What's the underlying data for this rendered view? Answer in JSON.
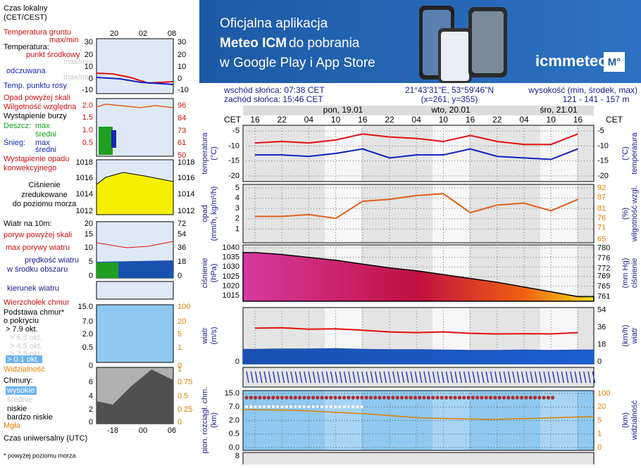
{
  "banner": {
    "line1": "Oficjalna aplikacja",
    "line2a": "Meteo ICM",
    "line2b": "do pobrania",
    "line3": "w Google Play i App Store",
    "logo": "icmmeteo",
    "badge": "M°"
  },
  "info": {
    "sunrise": "wschód słońca: 07:38 CET",
    "sunset": "zachód słońca: 15:46 CET",
    "coords": "21°43'31\"E, 53°59'46\"N",
    "grid": "(x=261,  y=355)",
    "elevation_label": "wysokość (min, środek, max)",
    "elevation": "121 - 141 - 157 m"
  },
  "time_axis": {
    "left": "CET",
    "right": "CET",
    "hours": [
      "16",
      "22",
      "04",
      "10",
      "16",
      "22",
      "04",
      "10",
      "16",
      "22",
      "04",
      "10",
      "16"
    ],
    "days": [
      "pon, 19.01",
      "wto, 20.01",
      "śro, 21.01"
    ]
  },
  "chart_data": [
    {
      "type": "line",
      "y_title": "temperatura",
      "y_unit": "(°C)",
      "y2_unit": "(°C)",
      "y2_title": "temperatura",
      "ylim": [
        -21.9,
        -3.1
      ],
      "yticks": [
        -20,
        -15,
        -10,
        -5
      ],
      "y2lim": [
        -21.9,
        -3.1
      ],
      "y2ticks": [
        -20,
        -15,
        -10,
        -5
      ],
      "series": [
        {
          "color": "#e01010",
          "values": [
            -9,
            -8.5,
            -9,
            -8,
            -6,
            -7,
            -7.5,
            -8.5,
            -6.5,
            -8.5,
            -9.5,
            -9.5,
            -6
          ]
        },
        {
          "color": "#1020c0",
          "values": [
            -13,
            -13,
            -13.5,
            -12.5,
            -11,
            -14,
            -13,
            -13,
            -11,
            -13.5,
            -14,
            -14.5,
            -11
          ]
        }
      ]
    },
    {
      "type": "line",
      "y_title": "opad",
      "y_unit": "(mm/h, kg/m²/h)",
      "y2_unit": "(%)",
      "y2_title": "wilgotność wzgl.",
      "ylim": [
        -0.34,
        5.34
      ],
      "yticks": [
        1,
        2,
        3,
        4,
        5
      ],
      "y2lim": [
        63.1,
        93.9
      ],
      "y2ticks": [
        65,
        71,
        76,
        81,
        87,
        92
      ],
      "series": [
        {
          "color": "#e0601a",
          "axis": "y2",
          "values": [
            77,
            77,
            78,
            76,
            85,
            86,
            88,
            89,
            79,
            83,
            84,
            80,
            86
          ]
        }
      ]
    },
    {
      "type": "area",
      "y_title": "ciśnienie",
      "y_unit": "(hPa)",
      "y2_unit": "(mm Hg)",
      "y2_title": "ciśnienie",
      "ylim": [
        1012.1,
        1041.5
      ],
      "yticks": [
        1015,
        1020,
        1025,
        1030,
        1035,
        1040
      ],
      "y2lim": [
        759.2,
        781.2
      ],
      "y2ticks": [
        761,
        765,
        769,
        772,
        776,
        780
      ],
      "series": [
        {
          "color": "#000000",
          "values": [
            1037.5,
            1036.5,
            1035,
            1033.5,
            1031.5,
            1029.5,
            1028,
            1026,
            1024,
            1022,
            1019.5,
            1017,
            1014.5
          ]
        }
      ]
    },
    {
      "type": "area",
      "y_title": "wiatr",
      "y_unit": "(m/s)",
      "y2_unit": "(km/h)",
      "y2_title": "wiatr",
      "ylim": [
        -0.6,
        15.8
      ],
      "yticks": [
        0
      ],
      "y2lim": [
        -2.1,
        56.8
      ],
      "y2ticks": [
        0,
        18,
        36,
        54
      ],
      "series": [
        {
          "color": "#1a50b0",
          "values": [
            3.6,
            3.7,
            3.7,
            3.8,
            3.6,
            3.5,
            3.5,
            3.4,
            3.3,
            3.3,
            3.4,
            3.3,
            3.4
          ]
        },
        {
          "color": "#e01010",
          "values": [
            9.8,
            9.9,
            9.5,
            9.6,
            9.2,
            8.7,
            8.5,
            8.7,
            8.3,
            8.1,
            8.2,
            8.1,
            8.5
          ]
        }
      ]
    }
  ],
  "cloud_panel": {
    "y_title": "pion. rozciągł. chm.",
    "y_unit": "(km)",
    "y2_unit": "(km)",
    "y2_title": "widzialność",
    "yticks": [
      "15.0",
      "7.0",
      "2.0",
      "0.5",
      "0.0"
    ],
    "y2ticks": [
      "100",
      "20",
      "5",
      "1",
      "0"
    ]
  },
  "bottom_panel": {
    "yticks": [
      "8"
    ]
  },
  "legend": {
    "local_time": [
      "Czas lokalny",
      "(CET/CEST)"
    ],
    "local_hours": [
      "20",
      "02",
      "08"
    ],
    "temperature": {
      "ground": "Temperatura gruntu",
      "ground_mm": "max/min",
      "title": "Temperatura:",
      "mid": "punkt środkowy",
      "mid_mm": "max/min",
      "felt": "odczuwana",
      "felt_mm": "max/min",
      "dew": "Temp. punktu rosy",
      "ticks": [
        "30",
        "20",
        "10",
        "0",
        "-10"
      ]
    },
    "precip": {
      "above": "Opad powyżej skali",
      "humidity": "Wilgotność względna",
      "storm": "Wystąpienie burzy",
      "rain": "Deszcz:",
      "rain_max": "max",
      "rain_mean": "średni",
      "snow": "Śnieg:",
      "snow_max": "max",
      "snow_mean": "średni",
      "conv1": "Wystąpienie opadu",
      "conv2": "konwekcyjnego",
      "ticks": [
        "2.0",
        "1.5",
        "1.0",
        "0.5"
      ],
      "ticks2": [
        "96",
        "84",
        "73",
        "61",
        "50"
      ]
    },
    "pressure": {
      "lines": [
        "Ciśnienie",
        "zredukowane",
        "do poziomu morza"
      ],
      "ticks": [
        "1018",
        "1016",
        "1014",
        "1012"
      ]
    },
    "wind": {
      "title": "Wiatr na 10m:",
      "gust_above": "poryw powyżej skali",
      "gust_max": "max porywy wiatru",
      "speed1": "prędkość wiatru",
      "speed2": "w środku obszaru",
      "ticks": [
        "20",
        "15",
        "10",
        "5",
        "0"
      ],
      "ticks2": [
        "72",
        "54",
        "36",
        "18",
        "0"
      ]
    },
    "direction": "kierunek wiatru",
    "cloudbase": {
      "top": "Wierzchołek chmur",
      "base1": "Podstawa chmur*",
      "base2": "o pokryciu",
      "levels": [
        "> 7.9 okt.",
        "> 6.5 okt.",
        "> 4.5 okt.",
        "> 2.5 okt.",
        "> 0.1 okt."
      ],
      "visibility": "Widzialność",
      "ticks": [
        "15.0",
        "7.0",
        "2.0",
        "0.5",
        "0"
      ],
      "ticks2": [
        "100",
        "20",
        "5",
        "1",
        "0"
      ]
    },
    "cover": {
      "title": "Chmury:",
      "levels": [
        "wysokie",
        "średnie",
        "niskie",
        "bardzo niskie"
      ],
      "fog": "Mgła",
      "ticks": [
        "6",
        "4",
        "2",
        "0"
      ],
      "ticks2": [
        "1",
        "0.75",
        "0.5",
        "0.25",
        "0"
      ],
      "utc_hours": [
        "-18",
        "00",
        "06"
      ],
      "utc": "Czas uniwersalny (UTC)"
    },
    "footnote": "* powyżej poziomu morza"
  }
}
